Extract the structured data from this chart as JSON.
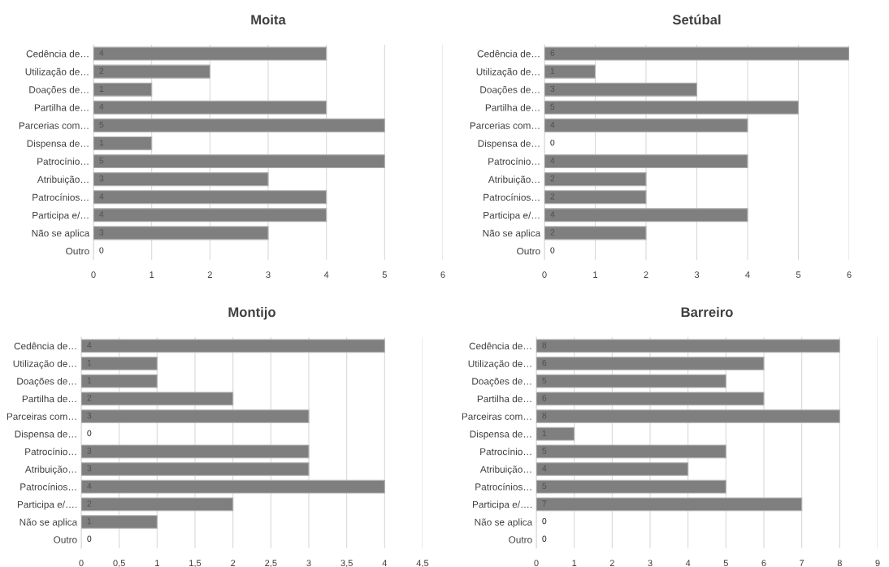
{
  "chart_data": [
    {
      "type": "bar",
      "orientation": "horizontal",
      "title": "Moita",
      "categories": [
        "Cedência de…",
        "Utilização de…",
        "Doações de…",
        "Partilha de…",
        "Parcerias com…",
        "Dispensa de…",
        "Patrocínio…",
        "Atribuição…",
        "Patrocínios…",
        "Participa e/…",
        "Não se aplica",
        "Outro"
      ],
      "values": [
        4,
        2,
        1,
        4,
        5,
        1,
        5,
        3,
        4,
        4,
        3,
        0
      ],
      "color": "#7f7f7f",
      "xlim": [
        0,
        6
      ],
      "xticks": [
        0,
        1,
        2,
        3,
        4,
        5,
        6
      ],
      "grid": "x",
      "data_labels": true
    },
    {
      "type": "bar",
      "orientation": "horizontal",
      "title": "Setúbal",
      "categories": [
        "Cedência de…",
        "Utilização de…",
        "Doações de…",
        "Partilha de…",
        "Parcerias com…",
        "Dispensa de…",
        "Patrocínio…",
        "Atribuição…",
        "Patrocínios…",
        "Participa e/…",
        "Não se aplica",
        "Outro"
      ],
      "values": [
        6,
        1,
        3,
        5,
        4,
        0,
        4,
        2,
        2,
        4,
        2,
        0
      ],
      "color": "#7f7f7f",
      "xlim": [
        0,
        6
      ],
      "xticks": [
        0,
        1,
        2,
        3,
        4,
        5,
        6
      ],
      "grid": "x",
      "data_labels": true
    },
    {
      "type": "bar",
      "orientation": "horizontal",
      "title": "Montijo",
      "categories": [
        "Cedência de…",
        "Utilização de…",
        "Doações de…",
        "Partilha de…",
        "Parceiras com…",
        "Dispensa de…",
        "Patrocínio…",
        "Atribuição…",
        "Patrocínios…",
        "Participa e/….",
        "Não se aplica",
        "Outro"
      ],
      "values": [
        4,
        1,
        1,
        2,
        3,
        0,
        3,
        3,
        4,
        2,
        1,
        0
      ],
      "color": "#7f7f7f",
      "xlim": [
        0,
        4.5
      ],
      "xticks": [
        0,
        {
          "value": 0.5,
          "label": "0,5"
        },
        1,
        {
          "value": 1.5,
          "label": "1,5"
        },
        2,
        {
          "value": 2.5,
          "label": "2,5"
        },
        3,
        {
          "value": 3.5,
          "label": "3,5"
        },
        4,
        {
          "value": 4.5,
          "label": "4,5"
        }
      ],
      "grid": "x",
      "data_labels": true
    },
    {
      "type": "bar",
      "orientation": "horizontal",
      "title": "Barreiro",
      "categories": [
        "Cedência de…",
        "Utilização de…",
        "Doações de…",
        "Partilha de…",
        "Parceiras com…",
        "Dispensa de…",
        "Patrocínio…",
        "Atribuição…",
        "Patrocínios…",
        "Participa e/….",
        "Não se aplica",
        "Outro"
      ],
      "values": [
        8,
        6,
        5,
        6,
        8,
        1,
        5,
        4,
        5,
        7,
        0,
        0
      ],
      "color": "#7f7f7f",
      "xlim": [
        0,
        9
      ],
      "xticks": [
        0,
        1,
        2,
        3,
        4,
        5,
        6,
        7,
        8,
        9
      ],
      "grid": "x",
      "data_labels": true
    }
  ]
}
